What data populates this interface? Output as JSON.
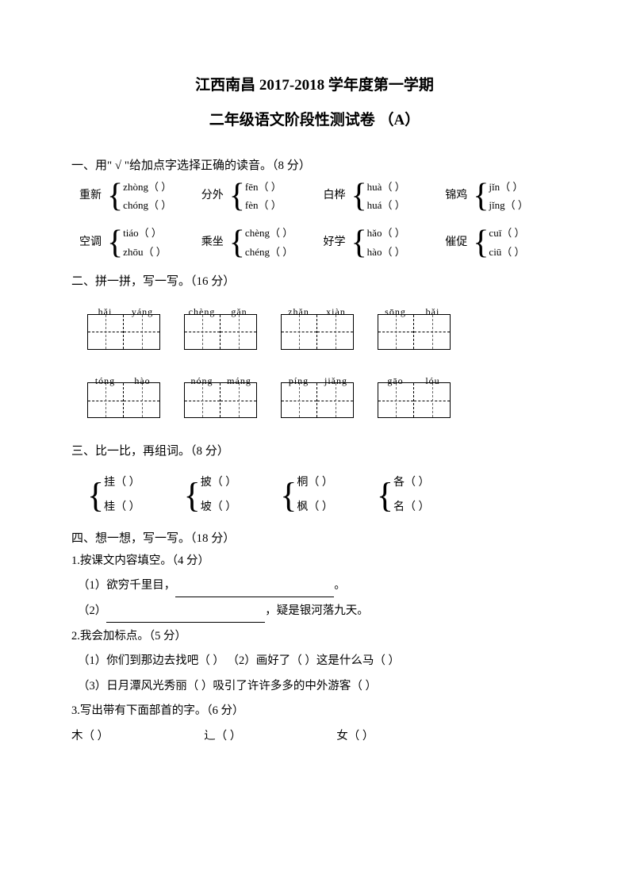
{
  "header": {
    "title1": "江西南昌 2017-2018 学年度第一学期",
    "title2": "二年级语文阶段性测试卷 （A）"
  },
  "q1": {
    "heading": "一、用\" √ \"给加点字选择正确的读音。（8 分）",
    "rows": [
      [
        {
          "label": "重新",
          "opt1": "zhòng（    ）",
          "opt2": "chóng（    ）"
        },
        {
          "label": "分外",
          "opt1": "fēn（    ）",
          "opt2": "fèn（    ）"
        },
        {
          "label": "白桦",
          "opt1": "huà（    ）",
          "opt2": "huá（    ）"
        },
        {
          "label": "锦鸡",
          "opt1": "jǐn（    ）",
          "opt2": "jǐng（    ）"
        }
      ],
      [
        {
          "label": "空调",
          "opt1": "tiáo（    ）",
          "opt2": "zhōu（    ）"
        },
        {
          "label": "乘坐",
          "opt1": "chèng（    ）",
          "opt2": "chéng（    ）"
        },
        {
          "label": "好学",
          "opt1": "hǎo（    ）",
          "opt2": "hào（    ）"
        },
        {
          "label": "催促",
          "opt1": "cuī（    ）",
          "opt2": "ciū（    ）"
        }
      ]
    ]
  },
  "q2": {
    "heading": "二、拼一拼，写一写。（16 分）",
    "rows": [
      [
        [
          "hǎi",
          "yáng"
        ],
        [
          "chèng",
          "gǎn"
        ],
        [
          "zhǎn",
          "xiàn"
        ],
        [
          "sōng",
          "bǎi"
        ]
      ],
      [
        [
          "tóng",
          "hào"
        ],
        [
          "nóng",
          "máng"
        ],
        [
          "píng",
          "jiǎng"
        ],
        [
          "gāo",
          "lóu"
        ]
      ]
    ]
  },
  "q3": {
    "heading": "三、比一比，再组词。（8 分）",
    "groups": [
      {
        "c1": "挂（        ）",
        "c2": "桂（        ）"
      },
      {
        "c1": "披（        ）",
        "c2": "坡（        ）"
      },
      {
        "c1": "桐（        ）",
        "c2": "枫（        ）"
      },
      {
        "c1": "各（        ）",
        "c2": "名（        ）"
      }
    ]
  },
  "q4": {
    "heading": "四、想一想，写一写。（18 分）",
    "sub1": {
      "heading": "1.按课文内容填空。（4 分）",
      "line1_a": "（1）欲穷千里目，",
      "line1_b": "。",
      "line2_a": "（2）",
      "line2_b": "，疑是银河落九天。"
    },
    "sub2": {
      "heading": "2.我会加标点。（5 分）",
      "line1": "（1）你们到那边去找吧（        ）        （2）画好了（        ）这是什么马（        ）",
      "line2": "（3）日月潭风光秀丽（        ）吸引了许许多多的中外游客（        ）"
    },
    "sub3": {
      "heading": "3.写出带有下面部首的字。（6 分）",
      "items": [
        "木（        ）",
        "辶（        ）",
        "女（        ）"
      ]
    }
  }
}
